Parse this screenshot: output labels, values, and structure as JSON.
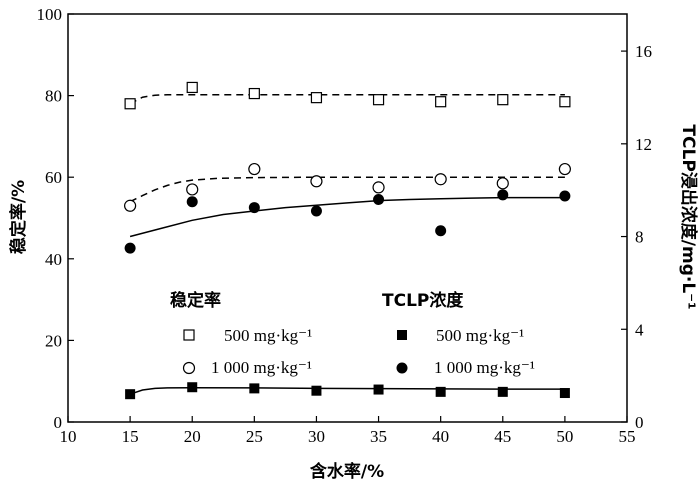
{
  "chart_data": {
    "type": "scatter",
    "xlabel": "含水率/%",
    "ylabel_left": "稳定率/%",
    "ylabel_right": "TCLP浸出浓度/mg·L⁻¹",
    "xlim": [
      10,
      55
    ],
    "ylim_left": [
      0,
      100
    ],
    "ylim_right": [
      0,
      17.6
    ],
    "x_ticks": [
      10,
      15,
      20,
      25,
      30,
      35,
      40,
      45,
      50,
      55
    ],
    "y_left_ticks": [
      0,
      20,
      40,
      60,
      80,
      100
    ],
    "y_right_ticks": [
      0,
      4,
      8,
      12,
      16
    ],
    "legend": {
      "group_left_title": "稳定率",
      "group_right_title": "TCLP浓度",
      "entries": [
        {
          "label": "500 mg·kg⁻¹",
          "marker": "open-square"
        },
        {
          "label": "1 000 mg·kg⁻¹",
          "marker": "open-circle"
        },
        {
          "label": "500 mg·kg⁻¹",
          "marker": "filled-square"
        },
        {
          "label": "1 000 mg·kg⁻¹",
          "marker": "filled-circle"
        }
      ]
    },
    "series": [
      {
        "group": "稳定率",
        "label": "500 mg·kg⁻¹",
        "axis": "left",
        "marker": "open-square",
        "x": [
          15,
          20,
          25,
          30,
          35,
          40,
          45,
          50
        ],
        "y": [
          78,
          82,
          80.5,
          79.5,
          79,
          78.5,
          79,
          78.5
        ]
      },
      {
        "group": "稳定率",
        "label": "1 000 mg·kg⁻¹",
        "axis": "left",
        "marker": "open-circle",
        "x": [
          15,
          20,
          25,
          30,
          35,
          40,
          45,
          50
        ],
        "y": [
          53,
          57,
          62,
          59,
          57.5,
          59.5,
          58.5,
          62
        ]
      },
      {
        "group": "TCLP浓度",
        "label": "500 mg·kg⁻¹",
        "axis": "right",
        "marker": "filled-square",
        "x": [
          15,
          20,
          25,
          30,
          35,
          40,
          45,
          50
        ],
        "y": [
          1.2,
          1.5,
          1.45,
          1.35,
          1.4,
          1.3,
          1.3,
          1.25
        ]
      },
      {
        "group": "TCLP浓度",
        "label": "1 000 mg·kg⁻¹",
        "axis": "right",
        "marker": "filled-circle",
        "x": [
          15,
          20,
          25,
          30,
          35,
          40,
          45,
          50
        ],
        "y": [
          7.5,
          9.5,
          9.25,
          9.1,
          9.6,
          8.25,
          9.8,
          9.75
        ]
      }
    ],
    "fit_curves": [
      {
        "of": "open-square",
        "style": "dashed",
        "axis": "left",
        "x": [
          15,
          16,
          17,
          18,
          20,
          22,
          25,
          30,
          35,
          40,
          45,
          50
        ],
        "y": [
          78,
          79.6,
          80.1,
          80.2,
          80.2,
          80.2,
          80.2,
          80.2,
          80.2,
          80.2,
          80.2,
          80.2
        ]
      },
      {
        "of": "open-circle",
        "style": "dashed",
        "axis": "left",
        "x": [
          15,
          16,
          17,
          18,
          19,
          20,
          22,
          25,
          30,
          35,
          40,
          45,
          50
        ],
        "y": [
          54,
          55.5,
          56.9,
          58,
          58.8,
          59.3,
          59.7,
          59.9,
          60,
          60,
          60,
          60,
          60
        ]
      },
      {
        "of": "filled-square",
        "style": "solid",
        "axis": "right",
        "x": [
          15,
          16,
          17,
          18,
          20,
          25,
          30,
          35,
          40,
          45,
          50
        ],
        "y": [
          1.2,
          1.38,
          1.45,
          1.47,
          1.48,
          1.47,
          1.45,
          1.44,
          1.43,
          1.42,
          1.42
        ]
      },
      {
        "of": "filled-circle",
        "style": "solid",
        "axis": "right",
        "x": [
          15,
          17.5,
          20,
          22.5,
          25,
          27.5,
          30,
          32.5,
          35,
          37.5,
          40,
          42.5,
          45,
          47.5,
          50
        ],
        "y": [
          8.0,
          8.35,
          8.7,
          8.95,
          9.1,
          9.25,
          9.35,
          9.45,
          9.55,
          9.6,
          9.63,
          9.66,
          9.68,
          9.68,
          9.68
        ]
      }
    ]
  }
}
